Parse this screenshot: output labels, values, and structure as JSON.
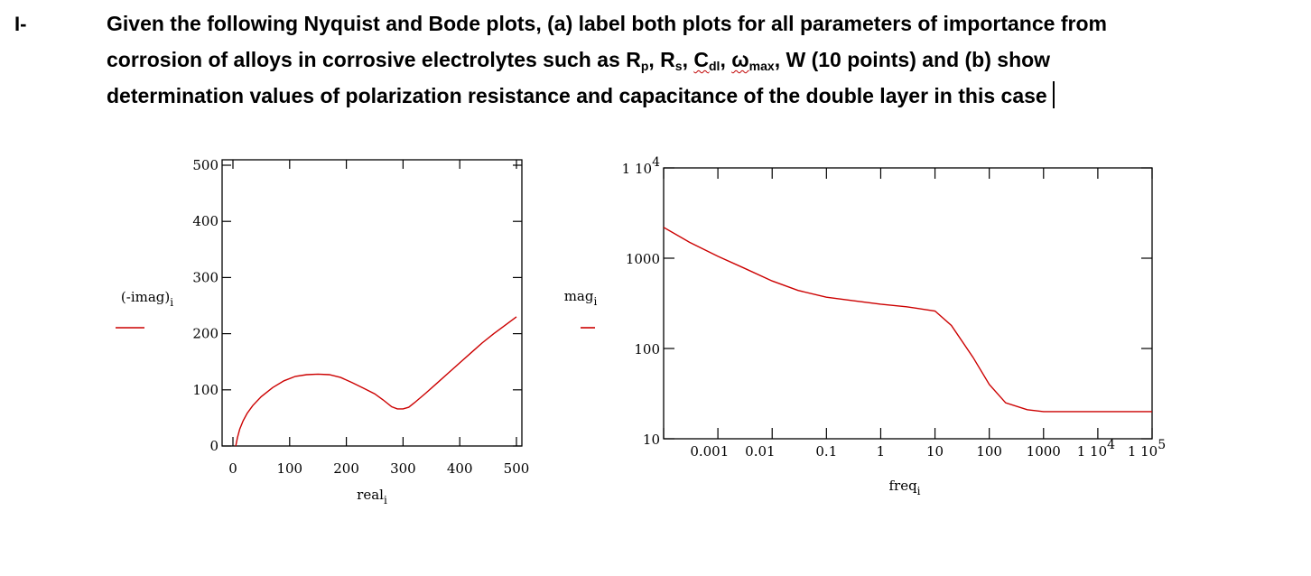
{
  "question": {
    "number": "I-",
    "line1": "Given the following Nyquist and Bode plots, (a) label both plots for all parameters of importance from",
    "line2_pre": "corrosion of alloys in corrosive electrolytes such as R",
    "rp_sub": "p",
    "sep1": ", R",
    "rs_sub": "s",
    "sep2": ", ",
    "cdl_main": "C",
    "cdl_sub": "dl",
    "sep3": ", ",
    "omega_main": "ω",
    "omega_sub": "max",
    "line2_post": ", W (10 points) and (b) show",
    "line3": "determination values of  polarization resistance and capacitance of the double layer in this case"
  },
  "colors": {
    "curve": "#cc0000",
    "axes": "#000000",
    "text": "#000000"
  },
  "chart_data": [
    {
      "type": "line",
      "title": "",
      "xlabel": "real",
      "xlabel_sub": "i",
      "ylabel": "(-imag)",
      "ylabel_sub": "i",
      "xlim": [
        0,
        500
      ],
      "ylim": [
        0,
        500
      ],
      "xticks": [
        0,
        100,
        200,
        300,
        400,
        500
      ],
      "xtick_labels": [
        "0",
        "100",
        "200",
        "300",
        "400",
        "500"
      ],
      "yticks": [
        0,
        100,
        200,
        300,
        400,
        500
      ],
      "ytick_labels": [
        "0",
        "100",
        "200",
        "300",
        "400",
        "500"
      ],
      "grid": false,
      "legend": "left",
      "series": [
        {
          "color": "#cc0000",
          "x": [
            5,
            8,
            12,
            18,
            25,
            35,
            50,
            70,
            90,
            110,
            130,
            150,
            170,
            190,
            210,
            230,
            250,
            265,
            280,
            290,
            300,
            310,
            320,
            340,
            360,
            380,
            400,
            420,
            440,
            460,
            480,
            500
          ],
          "y": [
            0,
            15,
            30,
            45,
            58,
            72,
            88,
            104,
            116,
            124,
            127,
            128,
            127,
            122,
            113,
            103,
            93,
            82,
            70,
            66,
            66,
            69,
            77,
            94,
            112,
            130,
            148,
            166,
            184,
            200,
            215,
            230
          ]
        }
      ]
    },
    {
      "type": "line",
      "title": "",
      "xlabel": "freq",
      "xlabel_sub": "i",
      "ylabel": "mag",
      "ylabel_sub": "i",
      "xscale": "log",
      "yscale": "log",
      "xlim": [
        0.0001,
        100000
      ],
      "ylim": [
        10,
        10000
      ],
      "xtick_labels": [
        "0.001",
        "0.01",
        "0.1",
        "1",
        "10",
        "100",
        "1000",
        "1 10",
        "1 10"
      ],
      "xtick_exponents": [
        "",
        "",
        "",
        "",
        "",
        "",
        "",
        "4",
        "5"
      ],
      "ytick_labels": [
        "10",
        "100",
        "1000",
        "1 10"
      ],
      "ytick_exponents": [
        "",
        "",
        "",
        "4"
      ],
      "grid": false,
      "legend": "left",
      "series": [
        {
          "color": "#cc0000",
          "x": [
            0.0001,
            0.0003,
            0.001,
            0.003,
            0.01,
            0.03,
            0.1,
            0.3,
            1,
            3,
            10,
            20,
            50,
            100,
            200,
            500,
            1000,
            3000,
            10000,
            100000
          ],
          "y": [
            2200,
            1500,
            1050,
            780,
            560,
            440,
            370,
            340,
            310,
            290,
            260,
            180,
            80,
            40,
            25,
            21,
            20,
            20,
            20,
            20
          ]
        }
      ]
    }
  ]
}
